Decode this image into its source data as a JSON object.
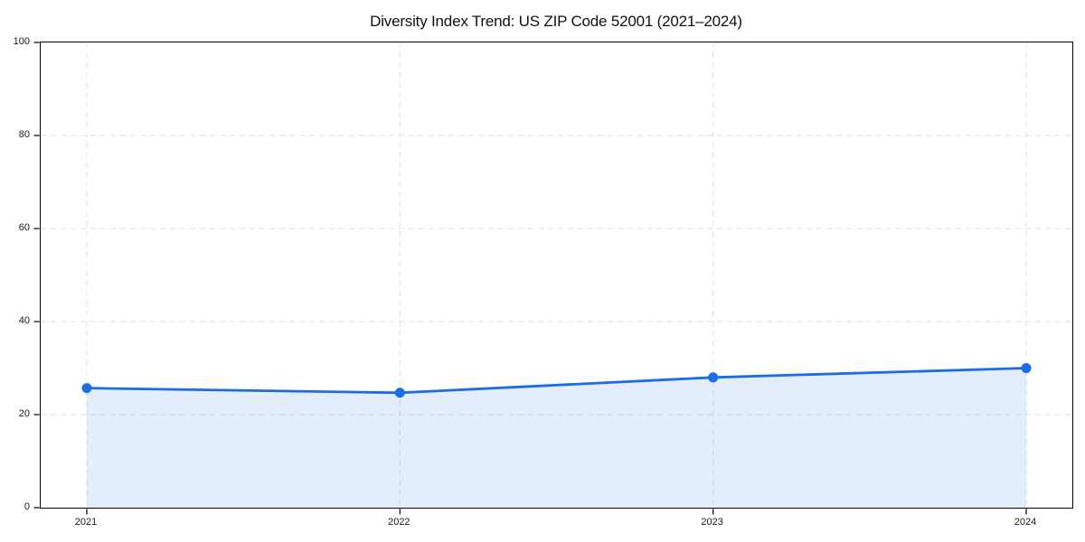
{
  "chart_data": {
    "type": "area",
    "title": "Diversity Index Trend: US ZIP Code 52001 (2021–2024)",
    "categories": [
      "2021",
      "2022",
      "2023",
      "2024"
    ],
    "x": [
      2021,
      2022,
      2023,
      2024
    ],
    "series": [
      {
        "name": "Diversity Index",
        "values": [
          25.7,
          24.7,
          28.0,
          30.0
        ]
      }
    ],
    "xlabel": "",
    "ylabel": "",
    "ylim": [
      0,
      100
    ],
    "yticks": [
      0,
      20,
      40,
      60,
      80,
      100
    ],
    "grid": true,
    "grid_style": "dashed",
    "legend": false,
    "marker": "circle"
  },
  "colors": {
    "line": "#1b6ce8",
    "marker": "#1b6ce8",
    "area_fill": "rgba(27,108,232,0.12)",
    "grid": "#e2e2e2",
    "axis": "#000000",
    "background": "#ffffff",
    "title_text": "#111111",
    "tick_text": "#1a1a1a"
  }
}
